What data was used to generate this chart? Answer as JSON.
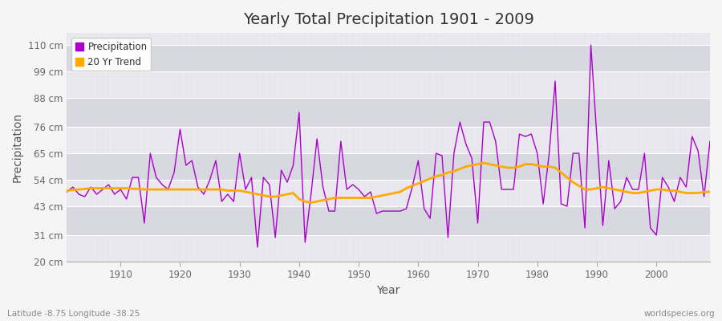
{
  "title": "Yearly Total Precipitation 1901 - 2009",
  "xlabel": "Year",
  "ylabel": "Precipitation",
  "subtitle_left": "Latitude -8.75 Longitude -38.25",
  "subtitle_right": "worldspecies.org",
  "fig_bg_color": "#f5f5f5",
  "plot_bg_color_light": "#e8e8ee",
  "plot_bg_color_dark": "#d8d8e0",
  "grid_color": "#ffffff",
  "precip_color": "#aa00cc",
  "trend_color": "#ffaa00",
  "ylim": [
    20,
    115
  ],
  "xlim": [
    1901,
    2009
  ],
  "yticks": [
    20,
    31,
    43,
    54,
    65,
    76,
    88,
    99,
    110
  ],
  "ytick_labels": [
    "20 cm",
    "31 cm",
    "43 cm",
    "54 cm",
    "65 cm",
    "76 cm",
    "88 cm",
    "99 cm",
    "110 cm"
  ],
  "xticks": [
    1910,
    1920,
    1930,
    1940,
    1950,
    1960,
    1970,
    1980,
    1990,
    2000
  ],
  "years": [
    1901,
    1902,
    1903,
    1904,
    1905,
    1906,
    1907,
    1908,
    1909,
    1910,
    1911,
    1912,
    1913,
    1914,
    1915,
    1916,
    1917,
    1918,
    1919,
    1920,
    1921,
    1922,
    1923,
    1924,
    1925,
    1926,
    1927,
    1928,
    1929,
    1930,
    1931,
    1932,
    1933,
    1934,
    1935,
    1936,
    1937,
    1938,
    1939,
    1940,
    1941,
    1942,
    1943,
    1944,
    1945,
    1946,
    1947,
    1948,
    1949,
    1950,
    1951,
    1952,
    1953,
    1954,
    1955,
    1956,
    1957,
    1958,
    1959,
    1960,
    1961,
    1962,
    1963,
    1964,
    1965,
    1966,
    1967,
    1968,
    1969,
    1970,
    1971,
    1972,
    1973,
    1974,
    1975,
    1976,
    1977,
    1978,
    1979,
    1980,
    1981,
    1982,
    1983,
    1984,
    1985,
    1986,
    1987,
    1988,
    1989,
    1990,
    1991,
    1992,
    1993,
    1994,
    1995,
    1996,
    1997,
    1998,
    1999,
    2000,
    2001,
    2002,
    2003,
    2004,
    2005,
    2006,
    2007,
    2008,
    2009
  ],
  "precip": [
    49,
    51,
    48,
    47,
    51,
    48,
    50,
    52,
    48,
    50,
    46,
    55,
    55,
    36,
    65,
    55,
    52,
    50,
    57,
    75,
    60,
    62,
    51,
    48,
    54,
    62,
    45,
    48,
    45,
    65,
    50,
    55,
    26,
    55,
    52,
    30,
    58,
    53,
    60,
    82,
    28,
    48,
    71,
    51,
    41,
    41,
    70,
    50,
    52,
    50,
    47,
    49,
    40,
    41,
    41,
    41,
    41,
    42,
    51,
    62,
    42,
    38,
    65,
    64,
    30,
    65,
    78,
    69,
    63,
    36,
    78,
    78,
    70,
    50,
    50,
    50,
    73,
    72,
    73,
    65,
    44,
    65,
    95,
    44,
    43,
    65,
    65,
    34,
    110,
    72,
    35,
    62,
    42,
    45,
    55,
    50,
    50,
    65,
    34,
    31,
    55,
    51,
    45,
    55,
    51,
    72,
    66,
    47,
    70
  ],
  "trend_start_year": 1901,
  "trend": [
    49.5,
    49.8,
    50.0,
    50.2,
    50.5,
    50.5,
    50.5,
    50.5,
    50.5,
    50.5,
    50.5,
    50.3,
    50.2,
    50.0,
    50.0,
    50.0,
    50.0,
    50.0,
    50.0,
    50.0,
    50.0,
    50.0,
    50.0,
    50.0,
    50.0,
    50.0,
    50.0,
    49.5,
    49.5,
    49.5,
    49.0,
    48.5,
    48.0,
    47.5,
    47.0,
    47.0,
    47.5,
    48.0,
    48.5,
    46.0,
    45.0,
    44.5,
    45.0,
    45.5,
    46.0,
    46.5,
    46.5,
    46.5,
    46.5,
    46.5,
    46.5,
    46.5,
    47.0,
    47.5,
    48.0,
    48.5,
    49.0,
    50.5,
    51.5,
    52.5,
    53.5,
    54.5,
    55.5,
    56.0,
    57.0,
    57.5,
    58.5,
    59.5,
    60.0,
    60.5,
    61.0,
    60.5,
    60.0,
    59.5,
    59.0,
    59.0,
    59.5,
    60.5,
    60.5,
    60.0,
    59.5,
    59.5,
    59.0,
    57.0,
    55.0,
    53.0,
    51.5,
    50.0,
    50.0,
    50.5,
    51.0,
    50.5,
    50.0,
    49.5,
    49.0,
    48.5,
    48.5,
    49.0,
    49.5,
    50.0,
    50.0,
    49.5,
    49.5,
    49.0,
    48.5,
    48.5,
    48.5,
    49.0,
    49.0
  ]
}
